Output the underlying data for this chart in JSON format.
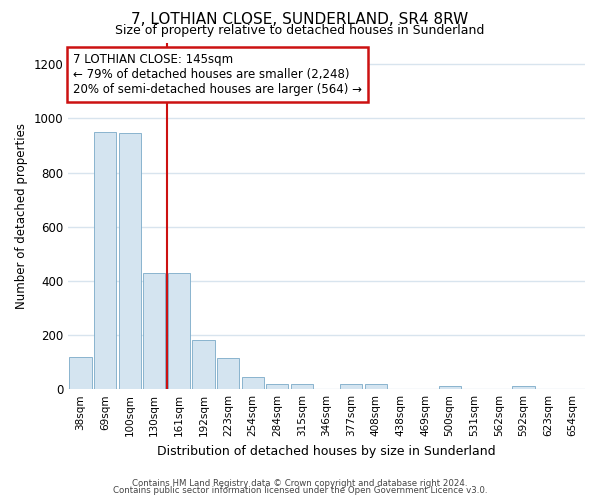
{
  "title": "7, LOTHIAN CLOSE, SUNDERLAND, SR4 8RW",
  "subtitle": "Size of property relative to detached houses in Sunderland",
  "xlabel": "Distribution of detached houses by size in Sunderland",
  "ylabel": "Number of detached properties",
  "categories": [
    "38sqm",
    "69sqm",
    "100sqm",
    "130sqm",
    "161sqm",
    "192sqm",
    "223sqm",
    "254sqm",
    "284sqm",
    "315sqm",
    "346sqm",
    "377sqm",
    "408sqm",
    "438sqm",
    "469sqm",
    "500sqm",
    "531sqm",
    "562sqm",
    "592sqm",
    "623sqm",
    "654sqm"
  ],
  "values": [
    120,
    950,
    945,
    430,
    430,
    180,
    115,
    45,
    20,
    20,
    0,
    18,
    18,
    0,
    0,
    10,
    0,
    0,
    10,
    0,
    0
  ],
  "bar_color": "#d4e4f0",
  "bar_edge_color": "#7aaac8",
  "vline_x": 3.5,
  "vline_color": "#cc1111",
  "annotation_text": "7 LOTHIAN CLOSE: 145sqm\n← 79% of detached houses are smaller (2,248)\n20% of semi-detached houses are larger (564) →",
  "annotation_box_color": "#ffffff",
  "annotation_box_edge": "#cc1111",
  "ylim": [
    0,
    1280
  ],
  "yticks": [
    0,
    200,
    400,
    600,
    800,
    1000,
    1200
  ],
  "footer1": "Contains HM Land Registry data © Crown copyright and database right 2024.",
  "footer2": "Contains public sector information licensed under the Open Government Licence v3.0.",
  "bg_color": "#ffffff",
  "grid_color": "#d8e4ee"
}
